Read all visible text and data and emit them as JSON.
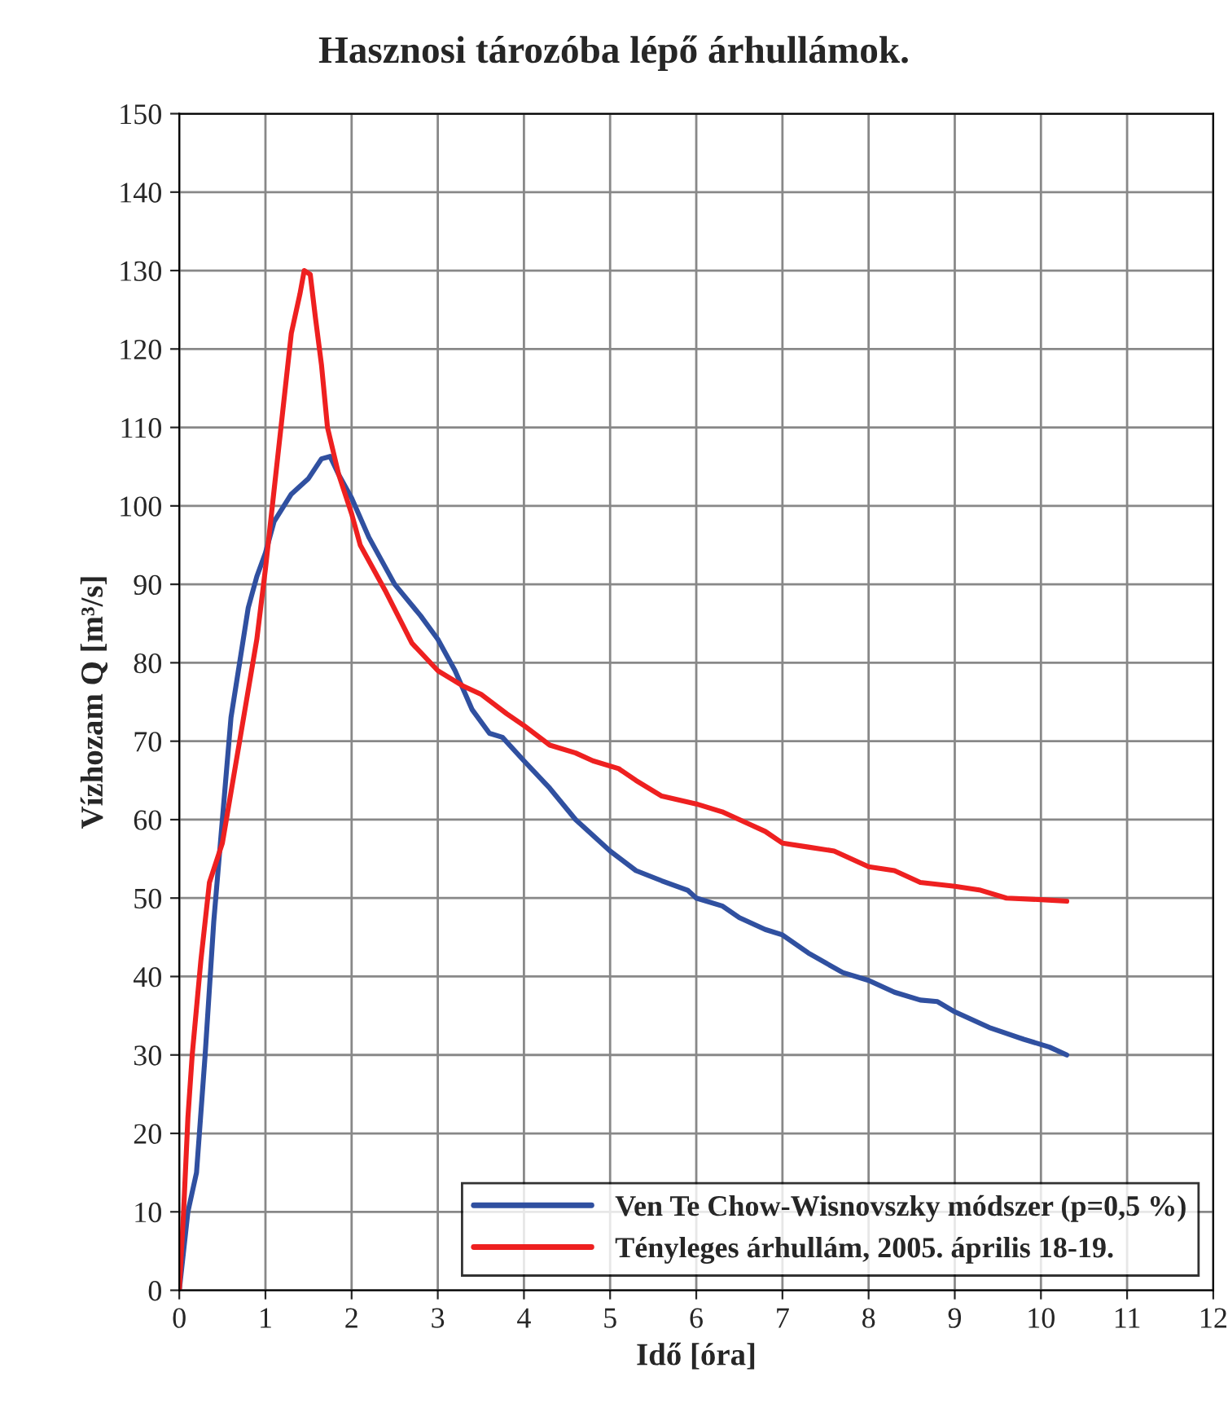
{
  "chart_data": {
    "type": "line",
    "title": "Hasznosi tározóba lépő árhullámok.",
    "xlabel": "Idő [óra]",
    "ylabel": "Vízhozam Q [m³/s]",
    "xlim": [
      0,
      12
    ],
    "xticks": [
      0,
      1,
      2,
      3,
      4,
      5,
      6,
      7,
      8,
      9,
      10,
      11,
      12
    ],
    "ylim": [
      0,
      150
    ],
    "yticks": [
      0,
      10,
      20,
      30,
      40,
      50,
      60,
      70,
      80,
      90,
      100,
      110,
      120,
      130,
      140,
      150
    ],
    "grid": true,
    "legend": "bottom right",
    "marker": "none",
    "line_style": "solid",
    "series": [
      {
        "name": "Ven Te Chow-Wisnovszky módszer (p=0,5 %)",
        "color": "#3050a0",
        "x": [
          0,
          0.1,
          0.2,
          0.3,
          0.4,
          0.5,
          0.6,
          0.7,
          0.8,
          0.9,
          1.0,
          1.1,
          1.3,
          1.5,
          1.65,
          1.75,
          1.85,
          2.0,
          2.2,
          2.5,
          2.8,
          3.0,
          3.2,
          3.4,
          3.6,
          3.75,
          4.0,
          4.3,
          4.6,
          5.0,
          5.3,
          5.6,
          5.9,
          6.0,
          6.3,
          6.5,
          6.8,
          7.0,
          7.3,
          7.7,
          8.0,
          8.3,
          8.6,
          8.8,
          9.0,
          9.4,
          9.8,
          10.1,
          10.3
        ],
        "values": [
          0,
          10,
          15,
          30,
          47,
          60,
          73,
          80,
          87,
          91,
          94,
          98,
          101.5,
          103.5,
          106,
          106.3,
          104,
          101,
          96,
          90,
          86,
          83,
          79,
          74,
          71,
          70.5,
          67.5,
          64,
          60,
          56,
          53.5,
          52.2,
          51,
          50,
          49,
          47.5,
          46,
          45.3,
          43,
          40.5,
          39.5,
          38,
          37,
          36.8,
          35.5,
          33.5,
          32,
          31,
          30
        ]
      },
      {
        "name": "Tényleges árhullám, 2005. április 18-19.",
        "color": "#ee2020",
        "x": [
          0,
          0.05,
          0.1,
          0.15,
          0.25,
          0.35,
          0.5,
          0.7,
          0.9,
          1.0,
          1.1,
          1.2,
          1.3,
          1.4,
          1.45,
          1.52,
          1.58,
          1.65,
          1.72,
          1.85,
          2.0,
          2.1,
          2.4,
          2.7,
          3.0,
          3.3,
          3.5,
          3.8,
          4.0,
          4.3,
          4.6,
          4.8,
          5.1,
          5.3,
          5.6,
          6.0,
          6.3,
          6.6,
          6.8,
          7.0,
          7.3,
          7.6,
          8.0,
          8.3,
          8.6,
          9.0,
          9.3,
          9.6,
          10.0,
          10.3
        ],
        "values": [
          0,
          10,
          22,
          30,
          42,
          52,
          57,
          70,
          83,
          92,
          102,
          112,
          122,
          127,
          130,
          129.5,
          124,
          118,
          110,
          104,
          99,
          95,
          89,
          82.5,
          79,
          77,
          76,
          73.5,
          72,
          69.5,
          68.5,
          67.5,
          66.5,
          65,
          63,
          62,
          61,
          59.5,
          58.5,
          57,
          56.5,
          56,
          54,
          53.5,
          52,
          51.5,
          51,
          50,
          49.8,
          49.6
        ]
      }
    ]
  }
}
